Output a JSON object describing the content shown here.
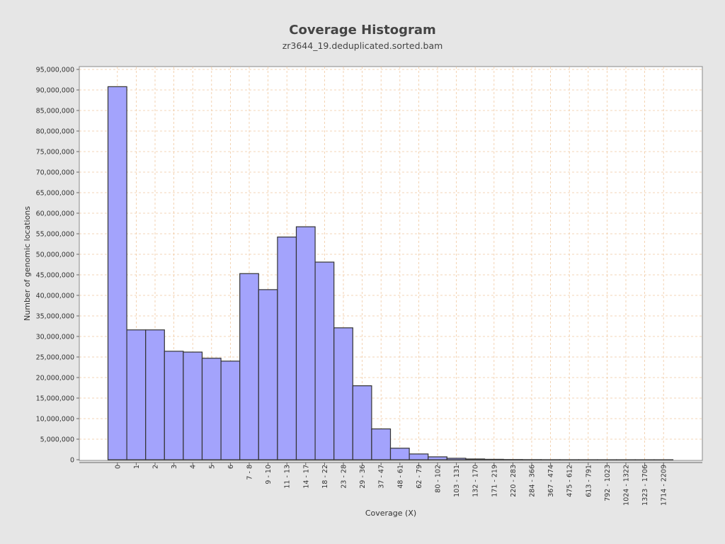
{
  "chart_data": {
    "type": "bar",
    "title": "Coverage Histogram",
    "subtitle": "zr3644_19.deduplicated.sorted.bam",
    "xlabel": "Coverage (X)",
    "ylabel": "Number of genomic locations",
    "ylim": [
      0,
      95000000
    ],
    "yticks": [
      0,
      5000000,
      10000000,
      15000000,
      20000000,
      25000000,
      30000000,
      35000000,
      40000000,
      45000000,
      50000000,
      55000000,
      60000000,
      65000000,
      70000000,
      75000000,
      80000000,
      85000000,
      90000000,
      95000000
    ],
    "ytick_labels": [
      "0",
      "5,000,000",
      "10,000,000",
      "15,000,000",
      "20,000,000",
      "25,000,000",
      "30,000,000",
      "35,000,000",
      "40,000,000",
      "45,000,000",
      "50,000,000",
      "55,000,000",
      "60,000,000",
      "65,000,000",
      "70,000,000",
      "75,000,000",
      "80,000,000",
      "85,000,000",
      "90,000,000",
      "95,000,000"
    ],
    "categories": [
      "0",
      "1",
      "2",
      "3",
      "4",
      "5",
      "6",
      "7 - 8",
      "9 - 10",
      "11 - 13",
      "14 - 17",
      "18 - 22",
      "23 - 28",
      "29 - 36",
      "37 - 47",
      "48 - 61",
      "62 - 79",
      "80 - 102",
      "103 - 131",
      "132 - 170",
      "171 - 219",
      "220 - 283",
      "284 - 366",
      "367 - 474",
      "475 - 612",
      "613 - 791",
      "792 - 1023",
      "1024 - 1322",
      "1323 - 1706",
      "1714 - 2209"
    ],
    "values": [
      90800000,
      31600000,
      31600000,
      26400000,
      26200000,
      24700000,
      24000000,
      45300000,
      41400000,
      54200000,
      56700000,
      48100000,
      32100000,
      18000000,
      7500000,
      2800000,
      1400000,
      700000,
      350000,
      180000,
      100000,
      50000,
      30000,
      15000,
      8000,
      4000,
      2000,
      1000,
      500,
      200
    ],
    "grid": true,
    "legend": "none",
    "colors": {
      "background": "#e6e6e6",
      "plot_background": "#ffffff",
      "bar_fill": "#a3a3fc",
      "bar_stroke": "#333333",
      "grid": "#f0c8a0",
      "text": "#333333"
    }
  }
}
